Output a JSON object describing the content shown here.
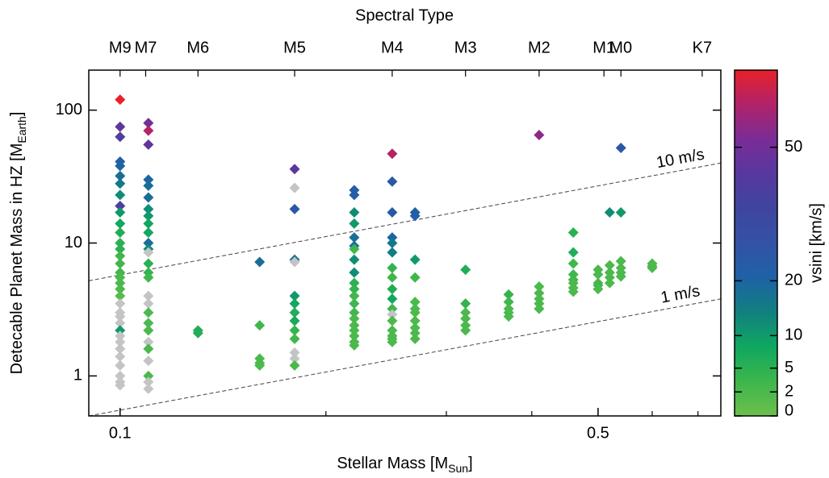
{
  "chart_data": {
    "type": "scatter",
    "x_label": {
      "text": "Stellar Mass [M",
      "sub": "Sun",
      "end": "]"
    },
    "y_label": {
      "text": "Detecable Planet Mass in HZ [M",
      "sub": "Earth",
      "end": "]"
    },
    "top_label": "Spectral Type",
    "colorbar_label": "vsini [km/s]",
    "x_log": true,
    "y_log": true,
    "xlim": [
      0.09,
      0.756
    ],
    "ylim": [
      0.5,
      200
    ],
    "xticks": [
      0.1,
      0.5
    ],
    "x_minor_ticks": [
      0.2,
      0.3,
      0.4,
      0.6,
      0.7
    ],
    "yticks": [
      1,
      10,
      100
    ],
    "x2ticks": [
      {
        "value": 0.1,
        "label": "M9"
      },
      {
        "value": 0.109,
        "label": "M7"
      },
      {
        "value": 0.13,
        "label": "M6"
      },
      {
        "value": 0.18,
        "label": "M5"
      },
      {
        "value": 0.25,
        "label": "M4"
      },
      {
        "value": 0.32,
        "label": "M3"
      },
      {
        "value": 0.41,
        "label": "M2"
      },
      {
        "value": 0.51,
        "label": "M1"
      },
      {
        "value": 0.54,
        "label": "M0"
      },
      {
        "value": 0.71,
        "label": "K7"
      }
    ],
    "clim": [
      0,
      70
    ],
    "color_scale_power": 0.75,
    "cticks": [
      0,
      2,
      5,
      10,
      20,
      50
    ],
    "colormap": [
      "#6cbf4c",
      "#3db64c",
      "#0fa760",
      "#11807f",
      "#1e62a6",
      "#3352a6",
      "#3f459f",
      "#57389f",
      "#7a2c96",
      "#b0236a",
      "#e8202a"
    ],
    "no_vsini_color": "#c4c4c4",
    "reference_lines": [
      {
        "label": "10 m/s",
        "x": [
          0.09,
          0.756
        ],
        "y": [
          5.2,
          40
        ]
      },
      {
        "label": "1 m/s",
        "x": [
          0.09,
          0.756
        ],
        "y": [
          0.5,
          3.8
        ]
      }
    ],
    "groups": [
      {
        "x": 0.1,
        "y": [
          120,
          75,
          63,
          41,
          38,
          32,
          28,
          23,
          19,
          17,
          14,
          12,
          10,
          9,
          8,
          7,
          6,
          5.5,
          5,
          4.5,
          4,
          3.5,
          3,
          2.8,
          2.5,
          2.2,
          2,
          1.8,
          1.6,
          1.4,
          1.2,
          1,
          0.9,
          0.85
        ],
        "vsini": [
          70,
          45,
          40,
          22,
          20,
          18,
          16,
          12,
          40,
          10,
          8,
          6,
          5,
          5,
          3,
          3,
          3,
          2,
          2,
          2,
          1,
          null,
          null,
          null,
          null,
          10,
          null,
          null,
          null,
          null,
          null,
          null,
          null,
          null
        ]
      },
      {
        "x": 0.11,
        "y": [
          80,
          70,
          55,
          30,
          27,
          22,
          18,
          16,
          14,
          12,
          10,
          9,
          8.5,
          7,
          6,
          5.5,
          4,
          3.5,
          3,
          2.5,
          2.2,
          1.8,
          1.6,
          1.3,
          1,
          0.9,
          0.8
        ],
        "vsini": [
          50,
          62,
          45,
          20,
          18,
          18,
          12,
          10,
          8,
          8,
          18,
          12,
          null,
          5,
          4,
          3,
          null,
          null,
          2,
          2,
          2,
          null,
          2,
          null,
          2,
          null,
          null
        ]
      },
      {
        "x": 0.13,
        "y": [
          2.2,
          2.1
        ],
        "vsini": [
          6,
          6
        ]
      },
      {
        "x": 0.16,
        "y": [
          7.2,
          2.4,
          1.35,
          1.25,
          1.2
        ],
        "vsini": [
          18,
          3,
          2,
          2,
          2
        ]
      },
      {
        "x": 0.18,
        "y": [
          36,
          26,
          18,
          7.5,
          7.2,
          4,
          3.5,
          3,
          2.6,
          2.2,
          1.9,
          1.5,
          1.35,
          1.2
        ],
        "vsini": [
          45,
          null,
          25,
          17,
          null,
          10,
          8,
          6,
          7,
          4,
          3,
          null,
          null,
          2
        ]
      },
      {
        "x": 0.22,
        "y": [
          25,
          23,
          17,
          14,
          11,
          9.5,
          9,
          7.5,
          6,
          5,
          4.5,
          4,
          3.5,
          3,
          2.7,
          2.4,
          2.2,
          2,
          1.8,
          1.7
        ],
        "vsini": [
          22,
          22,
          12,
          10,
          18,
          18,
          3,
          12,
          12,
          5,
          4,
          3,
          3,
          3,
          2,
          2,
          2,
          2,
          2,
          2
        ]
      },
      {
        "x": 0.25,
        "y": [
          47,
          29,
          17,
          11,
          10,
          8.5,
          6.5,
          5.5,
          4.5,
          3.8,
          3.2,
          2.9,
          2.6,
          2.2,
          2,
          1.9,
          1.8
        ],
        "vsini": [
          62,
          25,
          25,
          20,
          16,
          15,
          4,
          3,
          6,
          8,
          3,
          null,
          2,
          2,
          2,
          2,
          2
        ]
      },
      {
        "x": 0.27,
        "y": [
          17,
          16,
          7.5,
          5.5,
          3.6,
          3.2,
          3,
          2.6,
          2.3,
          2.1,
          1.9
        ],
        "vsini": [
          22,
          22,
          10,
          3,
          2,
          2,
          2,
          2,
          2,
          2,
          2
        ]
      },
      {
        "x": 0.32,
        "y": [
          6.3,
          3.5,
          3,
          2.7,
          2.4,
          2.2
        ],
        "vsini": [
          6,
          4,
          2,
          2,
          2,
          2
        ]
      },
      {
        "x": 0.37,
        "y": [
          4.1,
          3.6,
          3.2,
          3,
          2.8
        ],
        "vsini": [
          4,
          3,
          2,
          2,
          2
        ]
      },
      {
        "x": 0.41,
        "y": [
          65,
          4.7,
          4.2,
          3.8,
          3.5,
          3.2
        ],
        "vsini": [
          55,
          2,
          2,
          2,
          2,
          2
        ]
      },
      {
        "x": 0.46,
        "y": [
          12,
          8.5,
          7,
          5.8,
          5.3,
          5,
          4.6,
          4.3
        ],
        "vsini": [
          5,
          6,
          3,
          3,
          3,
          2,
          2,
          2
        ]
      },
      {
        "x": 0.5,
        "y": [
          6.3,
          5.8,
          5,
          4.8,
          4.5
        ],
        "vsini": [
          2,
          2,
          2,
          3,
          2
        ]
      },
      {
        "x": 0.52,
        "y": [
          17,
          6.8,
          6,
          5.5,
          5
        ],
        "vsini": [
          12,
          2,
          2,
          2,
          2
        ]
      },
      {
        "x": 0.54,
        "y": [
          52,
          17,
          7.3,
          6.5,
          6,
          5.6
        ],
        "vsini": [
          25,
          10,
          2,
          2,
          2,
          2
        ]
      },
      {
        "x": 0.6,
        "y": [
          7,
          6.7,
          6.5
        ],
        "vsini": [
          2,
          2,
          2
        ]
      }
    ]
  }
}
